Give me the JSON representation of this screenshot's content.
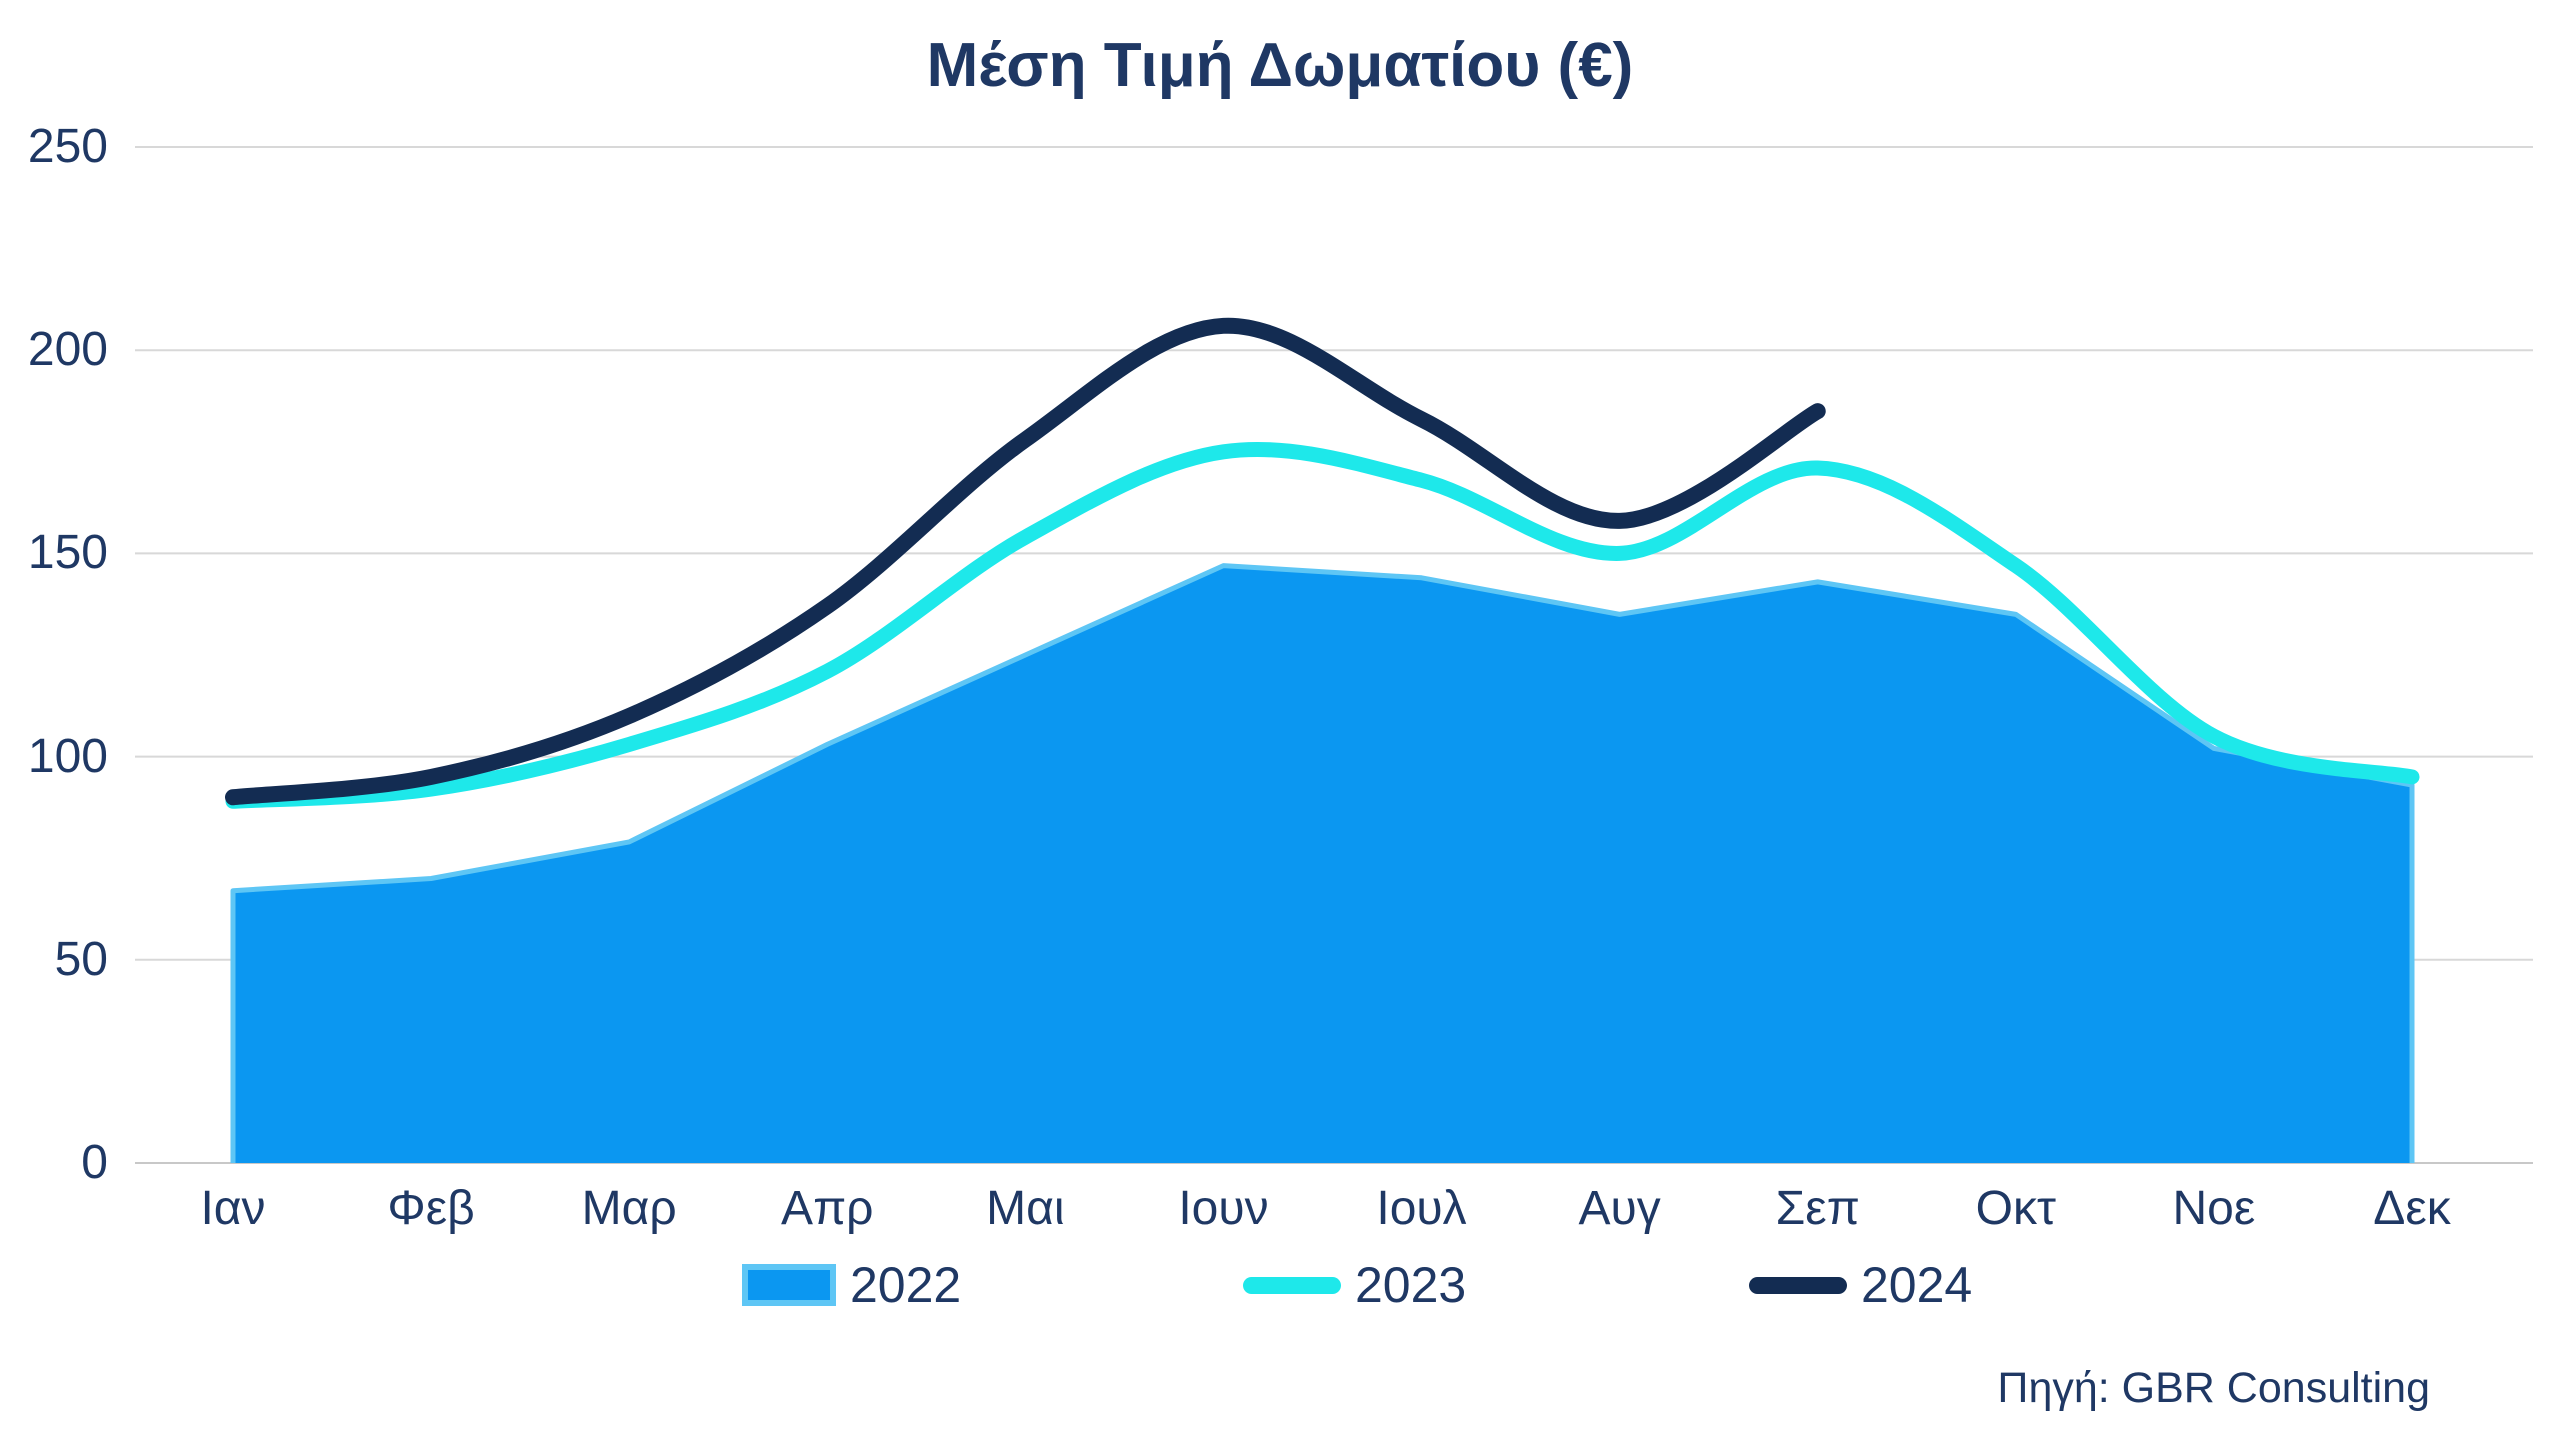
{
  "title": "Μέση Τιμή Δωματίου (€)",
  "source": "Πηγή: GBR Consulting",
  "axis": {
    "x": {
      "categories": [
        "Ιαν",
        "Φεβ",
        "Μαρ",
        "Απρ",
        "Μαι",
        "Ιουν",
        "Ιουλ",
        "Αυγ",
        "Σεπ",
        "Οκτ",
        "Νοε",
        "Δεκ"
      ]
    },
    "y": {
      "ticks": [
        {
          "label": "0",
          "value": 0
        },
        {
          "label": "50",
          "value": 50
        },
        {
          "label": "100",
          "value": 100
        },
        {
          "label": "150",
          "value": 150
        },
        {
          "label": "200",
          "value": 200
        },
        {
          "label": "250",
          "value": 250
        }
      ]
    }
  },
  "legend": {
    "items": [
      {
        "label": "2022",
        "swatch": "filled-rect"
      },
      {
        "label": "2023",
        "swatch": "rounded-line"
      },
      {
        "label": "2024",
        "swatch": "rounded-line"
      }
    ]
  },
  "colors": {
    "background": "#ffffff",
    "text": "#1f3864",
    "gridline": "#d8d8d8",
    "axis_line": "#c8c8c8",
    "area_2022_fill": "#0b97f1",
    "area_2022_border": "#5ec6f5",
    "line_2023": "#1ee8ea",
    "line_2024": "#132c52"
  },
  "chart_data": {
    "type": "area",
    "title": "Μέση Τιμή Δωματίου (€)",
    "categories": [
      "Ιαν",
      "Φεβ",
      "Μαρ",
      "Απρ",
      "Μαι",
      "Ιουν",
      "Ιουλ",
      "Αυγ",
      "Σεπ",
      "Οκτ",
      "Νοε",
      "Δεκ"
    ],
    "series": [
      {
        "name": "2022",
        "type": "area",
        "smooth": false,
        "color": "#0b97f1",
        "border": "#5ec6f5",
        "values": [
          67,
          70,
          79,
          103,
          125,
          147,
          144,
          135,
          143,
          135,
          102,
          93
        ]
      },
      {
        "name": "2023",
        "type": "line",
        "smooth": true,
        "color": "#1ee8ea",
        "values": [
          89,
          92,
          103,
          121,
          154,
          175,
          168,
          150,
          171,
          147,
          105,
          95
        ]
      },
      {
        "name": "2024",
        "type": "line",
        "smooth": true,
        "color": "#132c52",
        "values": [
          90,
          95,
          110,
          137,
          178,
          206,
          183,
          158,
          185
        ]
      }
    ],
    "xlabel": "",
    "ylabel": "",
    "ylim": [
      0,
      250
    ],
    "grid": "horizontal",
    "legend_position": "bottom"
  }
}
